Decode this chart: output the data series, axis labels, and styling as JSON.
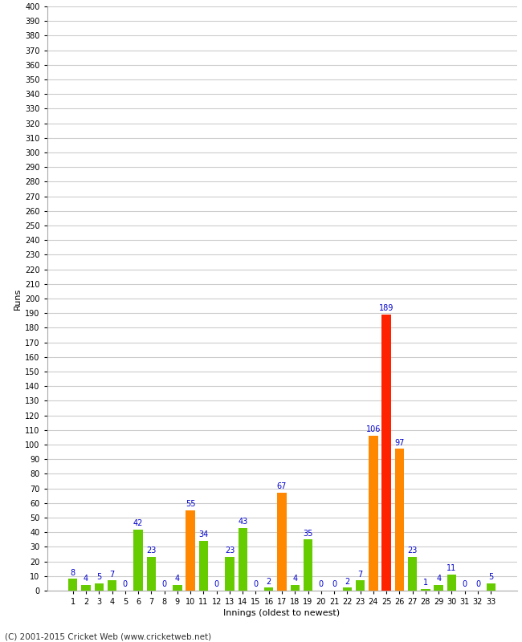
{
  "innings": [
    1,
    2,
    3,
    4,
    5,
    6,
    7,
    8,
    9,
    10,
    11,
    12,
    13,
    14,
    15,
    16,
    17,
    18,
    19,
    20,
    21,
    22,
    23,
    24,
    25,
    26,
    27,
    28,
    29,
    30,
    31,
    32,
    33
  ],
  "values": [
    8,
    4,
    5,
    7,
    0,
    42,
    23,
    0,
    4,
    55,
    34,
    0,
    23,
    43,
    0,
    2,
    67,
    4,
    35,
    0,
    0,
    2,
    7,
    106,
    189,
    97,
    23,
    1,
    4,
    11,
    0,
    0,
    5
  ],
  "colors": [
    "#66cc00",
    "#66cc00",
    "#66cc00",
    "#66cc00",
    "#66cc00",
    "#66cc00",
    "#66cc00",
    "#66cc00",
    "#66cc00",
    "#ff8800",
    "#66cc00",
    "#66cc00",
    "#66cc00",
    "#66cc00",
    "#66cc00",
    "#66cc00",
    "#ff8800",
    "#66cc00",
    "#66cc00",
    "#66cc00",
    "#66cc00",
    "#66cc00",
    "#66cc00",
    "#ff8800",
    "#ff2200",
    "#ff8800",
    "#66cc00",
    "#66cc00",
    "#66cc00",
    "#66cc00",
    "#66cc00",
    "#66cc00",
    "#66cc00"
  ],
  "ylabel": "Runs",
  "xlabel": "Innings (oldest to newest)",
  "ylim": [
    0,
    400
  ],
  "bg_color": "#ffffff",
  "grid_color": "#cccccc",
  "label_color": "#0000cc",
  "footer": "(C) 2001-2015 Cricket Web (www.cricketweb.net)"
}
